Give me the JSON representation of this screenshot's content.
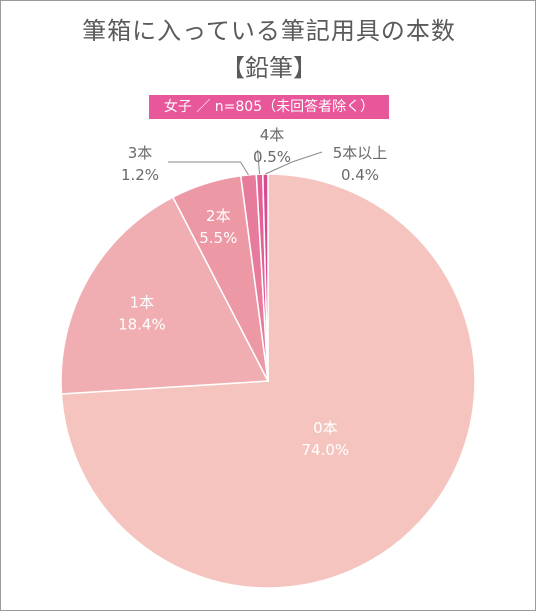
{
  "title": "筆箱に入っている筆記用具の本数",
  "subtitle": "【鉛筆】",
  "badge": "女子 ／ n=805（未回答者除く）",
  "chart_data": {
    "type": "pie",
    "title": "筆箱に入っている筆記用具の本数",
    "subtitle": "【鉛筆】",
    "slices": [
      {
        "label": "0本",
        "value": 74.0,
        "display": "74.0%",
        "color": "#f6c4be"
      },
      {
        "label": "1本",
        "value": 18.4,
        "display": "18.4%",
        "color": "#f1aeb2"
      },
      {
        "label": "2本",
        "value": 5.5,
        "display": "5.5%",
        "color": "#ec98a5"
      },
      {
        "label": "3本",
        "value": 1.2,
        "display": "1.2%",
        "color": "#e77b9c"
      },
      {
        "label": "4本",
        "value": 0.5,
        "display": "0.5%",
        "color": "#e45f97"
      },
      {
        "label": "5本以上",
        "value": 0.4,
        "display": "0.4%",
        "color": "#d94a8e"
      }
    ]
  }
}
